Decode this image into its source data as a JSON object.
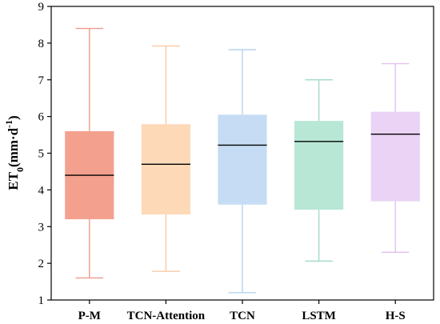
{
  "chart_data": {
    "type": "box",
    "title": "",
    "xlabel": "",
    "ylabel": {
      "main": "ET",
      "sub": "0",
      "unit_start": "(mm·d",
      "unit_sup": "-1",
      "unit_end": ")"
    },
    "ylim": [
      1,
      9
    ],
    "yticks": [
      1,
      2,
      3,
      4,
      5,
      6,
      7,
      8,
      9
    ],
    "grid": false,
    "categories": [
      "P-M",
      "TCN-Attention",
      "TCN",
      "LSTM",
      "H-S"
    ],
    "boxes": [
      {
        "category": "P-M",
        "min": 1.6,
        "q1": 3.2,
        "median": 4.4,
        "q3": 5.6,
        "max": 8.4,
        "color": "#f4a08f",
        "whisker_color": "#ef9b8a"
      },
      {
        "category": "TCN-Attention",
        "min": 1.78,
        "q1": 3.33,
        "median": 4.7,
        "q3": 5.79,
        "max": 7.92,
        "color": "#fdd9b8",
        "whisker_color": "#f9c9a4"
      },
      {
        "category": "TCN",
        "min": 1.2,
        "q1": 3.6,
        "median": 5.22,
        "q3": 6.05,
        "max": 7.82,
        "color": "#c5dcf4",
        "whisker_color": "#b7d3ef"
      },
      {
        "category": "LSTM",
        "min": 2.06,
        "q1": 3.46,
        "median": 5.32,
        "q3": 5.88,
        "max": 7.0,
        "color": "#b8e7d6",
        "whisker_color": "#a5dcc7"
      },
      {
        "category": "H-S",
        "min": 2.3,
        "q1": 3.69,
        "median": 5.52,
        "q3": 6.13,
        "max": 7.44,
        "color": "#ead3f5",
        "whisker_color": "#e1c0f0"
      }
    ]
  }
}
